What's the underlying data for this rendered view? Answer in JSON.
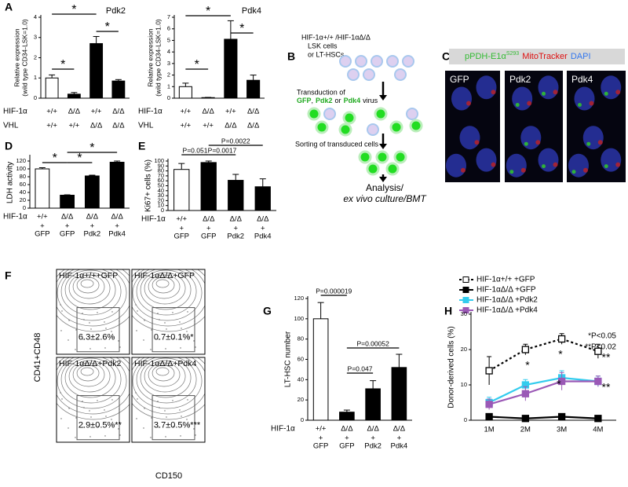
{
  "panel_letters": [
    "A",
    "B",
    "C",
    "D",
    "E",
    "F",
    "G",
    "H"
  ],
  "chart_data": [
    {
      "type": "bar",
      "title": "Pdk2",
      "y_label": "Relative expression",
      "y_label_2": "(wild type CD34-LSK=1.0)",
      "row_label": "HIF-1α",
      "categories": [
        "+/+",
        "Δ/Δ",
        "+/+",
        "Δ/Δ"
      ],
      "row_label_2": "VHL",
      "categories_2": [
        "+/+",
        "+/+",
        "Δ/Δ",
        "Δ/Δ"
      ],
      "values": [
        1.0,
        0.2,
        2.7,
        0.85
      ],
      "errors": [
        0.15,
        0.08,
        0.35,
        0.07
      ],
      "colors": [
        "#ffffff",
        "#000000",
        "#000000",
        "#000000"
      ],
      "ylim": [
        0,
        4
      ],
      "yticks": [
        0,
        1,
        2,
        3,
        4
      ],
      "annotations": [
        "*",
        "*",
        "*"
      ]
    },
    {
      "type": "bar",
      "title": "Pdk4",
      "y_label": "Relative expression",
      "y_label_2": "(wild type CD34-LSK=1.0)",
      "row_label": "HIF-1α",
      "categories": [
        "+/+",
        "Δ/Δ",
        "+/+",
        "Δ/Δ"
      ],
      "row_label_2": "VHL",
      "categories_2": [
        "+/+",
        "+/+",
        "Δ/Δ",
        "Δ/Δ"
      ],
      "values": [
        1.0,
        0.05,
        5.1,
        1.55
      ],
      "errors": [
        0.3,
        0.02,
        1.6,
        0.45
      ],
      "colors": [
        "#ffffff",
        "#000000",
        "#000000",
        "#000000"
      ],
      "ylim": [
        0,
        7
      ],
      "yticks": [
        0,
        1,
        2,
        3,
        4,
        5,
        6,
        7
      ],
      "annotations": [
        "*",
        "*",
        "*"
      ]
    },
    {
      "type": "bar",
      "y_label": "LDH activity",
      "row_label": "HIF-1α",
      "categories": [
        "+/+",
        "Δ/Δ",
        "Δ/Δ",
        "Δ/Δ"
      ],
      "categories_2": [
        "+",
        "+",
        "+",
        "+"
      ],
      "categories_3": [
        "GFP",
        "GFP",
        "Pdk2",
        "Pdk4"
      ],
      "values": [
        100,
        33,
        82,
        117
      ],
      "errors": [
        3,
        1,
        2,
        3
      ],
      "colors": [
        "#ffffff",
        "#000000",
        "#000000",
        "#000000"
      ],
      "ylim": [
        0,
        130
      ],
      "yticks": [
        0,
        20,
        40,
        60,
        80,
        100,
        120
      ],
      "annotations": [
        "*",
        "*",
        "*"
      ]
    },
    {
      "type": "bar",
      "y_label": "Ki67+ cells (%)",
      "row_label": "HIF-1α",
      "categories": [
        "+/+",
        "Δ/Δ",
        "Δ/Δ",
        "Δ/Δ"
      ],
      "categories_2": [
        "+",
        "+",
        "+",
        "+"
      ],
      "categories_3": [
        "GFP",
        "GFP",
        "Pdk2",
        "Pdk4"
      ],
      "values": [
        83,
        97,
        61,
        48
      ],
      "errors": [
        12,
        3,
        12,
        16
      ],
      "colors": [
        "#ffffff",
        "#000000",
        "#000000",
        "#000000"
      ],
      "ylim": [
        0,
        100
      ],
      "yticks": [
        0,
        10,
        20,
        30,
        40,
        50,
        60,
        70,
        80,
        90,
        100
      ],
      "annotations": [
        "P=0.051",
        "P=0.0017",
        "P=0.0022"
      ]
    },
    {
      "type": "bar",
      "y_label": "LT-HSC number",
      "row_label": "HIF-1α",
      "categories": [
        "+/+",
        "Δ/Δ",
        "Δ/Δ",
        "Δ/Δ"
      ],
      "categories_2": [
        "+",
        "+",
        "+",
        "+"
      ],
      "categories_3": [
        "GFP",
        "GFP",
        "Pdk2",
        "Pdk4"
      ],
      "values": [
        100,
        8,
        31,
        52
      ],
      "errors": [
        16,
        2,
        8,
        13
      ],
      "colors": [
        "#ffffff",
        "#000000",
        "#000000",
        "#000000"
      ],
      "ylim": [
        0,
        120
      ],
      "yticks": [
        0,
        20,
        40,
        60,
        80,
        100,
        120
      ],
      "annotations": [
        "P=0.000019",
        "P=0.047",
        "P=0.00052"
      ]
    },
    {
      "type": "line",
      "y_label": "Donor-derived cells (%)",
      "categories": [
        "1M",
        "2M",
        "3M",
        "4M"
      ],
      "series": [
        {
          "name": "HIF-1α+/+ +GFP",
          "color": "#000000",
          "dash": true,
          "open_marker": true,
          "values": [
            14,
            20,
            23,
            19.5
          ],
          "errors": [
            4,
            1.5,
            1.5,
            2
          ]
        },
        {
          "name": "HIF-1αΔ/Δ +GFP",
          "color": "#000000",
          "values": [
            1,
            0.5,
            1,
            0.5
          ],
          "errors": [
            0.5,
            0.3,
            0.4,
            0.3
          ]
        },
        {
          "name": "HIF-1αΔ/Δ +Pdk2",
          "color": "#33ccee",
          "values": [
            5,
            10,
            12,
            11
          ],
          "errors": [
            1.5,
            1.5,
            2,
            1.5
          ]
        },
        {
          "name": "HIF-1αΔ/Δ +Pdk4",
          "color": "#9b59b6",
          "values": [
            4.5,
            7.5,
            11,
            11
          ],
          "errors": [
            1.5,
            2,
            2.5,
            1.5
          ]
        }
      ],
      "ylim": [
        0,
        30
      ],
      "yticks": [
        0,
        10,
        20,
        30
      ],
      "annotations": [
        "*P<0.05",
        "**P<0.02"
      ],
      "point_annotations": [
        "*",
        "*",
        "*",
        "**",
        "**"
      ]
    }
  ],
  "diagram": {
    "start": [
      "HIF-1α+/+ /HIF-1αΔ/Δ",
      "LSK cells",
      "or LT-HSCs"
    ],
    "transduction": [
      "Transduction of",
      "GFP",
      ",",
      "Pdk2",
      "or",
      "Pdk4",
      "virus"
    ],
    "sorting": "Sorting of transduced cells",
    "end": [
      "Analysis/",
      "ex vivo culture/BMT"
    ]
  },
  "microscopy": {
    "legend": [
      "pPDH-E1α",
      "S293",
      "MitoTracker",
      "DAPI"
    ],
    "panels": [
      "GFP",
      "Pdk2",
      "Pdk4"
    ]
  },
  "flow": {
    "y_label": "CD41+CD48",
    "x_label": "CD150",
    "plots": [
      {
        "title": "HIF-1α+/++GFP",
        "value": "6.3±2.6%"
      },
      {
        "title": "HIF-1αΔ/Δ+GFP",
        "value": "0.7±0.1%*"
      },
      {
        "title": "HIF-1αΔ/Δ+Pdk2",
        "value": "2.9±0.5%**"
      },
      {
        "title": "HIF-1αΔ/Δ+Pdk4",
        "value": "3.7±0.5%***"
      }
    ]
  }
}
